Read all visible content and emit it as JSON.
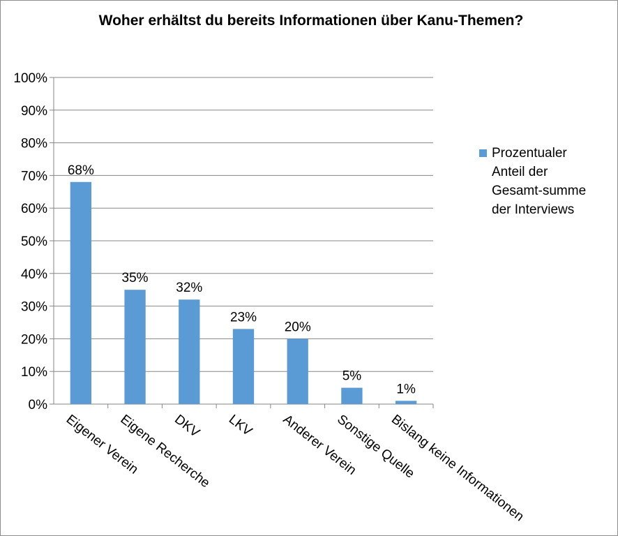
{
  "chart_data": {
    "type": "bar",
    "title": "Woher erhältst du bereits Informationen  über Kanu-Themen?",
    "categories": [
      "Eigener Verein",
      "Eigene Recherche",
      "DKV",
      "LKV",
      "Anderer Verein",
      "Sonstige Quelle",
      "Bislang keine Informationen"
    ],
    "series": [
      {
        "name": "Prozentualer Anteil der Gesamt-summe der Interviews",
        "values": [
          0.68,
          0.35,
          0.32,
          0.23,
          0.2,
          0.05,
          0.01
        ],
        "labels": [
          "68%",
          "35%",
          "32%",
          "23%",
          "20%",
          "5%",
          "1%"
        ],
        "color": "#5b9bd5"
      }
    ],
    "yticks": [
      "0%",
      "10%",
      "20%",
      "30%",
      "40%",
      "50%",
      "60%",
      "70%",
      "80%",
      "90%",
      "100%"
    ],
    "ylim": [
      0,
      1
    ],
    "grid": true,
    "legend_position": "right"
  }
}
